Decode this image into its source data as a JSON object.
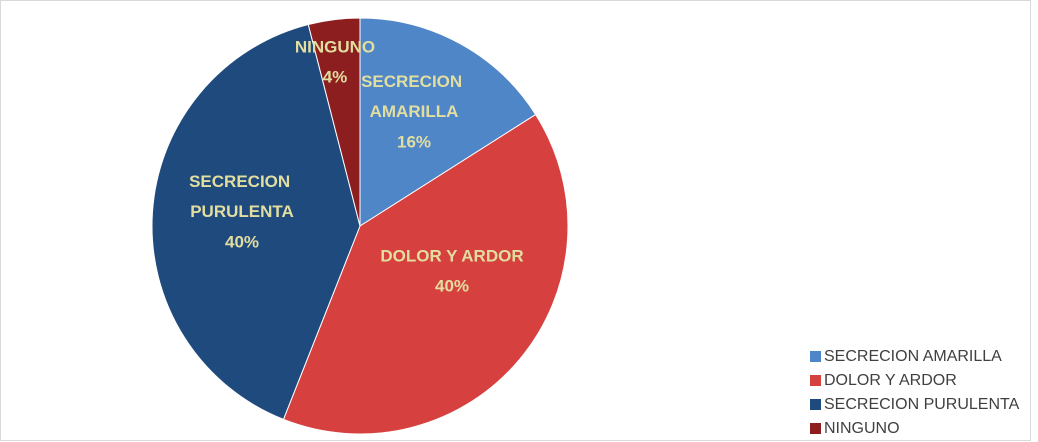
{
  "chart_data": {
    "type": "pie",
    "categories": [
      "SECRECION AMARILLA",
      "DOLOR Y ARDOR",
      "SECRECION PURULENTA",
      "NINGUNO"
    ],
    "values": [
      16,
      40,
      40,
      4
    ],
    "value_labels": [
      "16%",
      "40%",
      "40%",
      "4%"
    ],
    "colors": [
      "#4f86c8",
      "#d6413f",
      "#1f4a7e",
      "#8c1e1f"
    ],
    "legend": "bottom-right"
  }
}
